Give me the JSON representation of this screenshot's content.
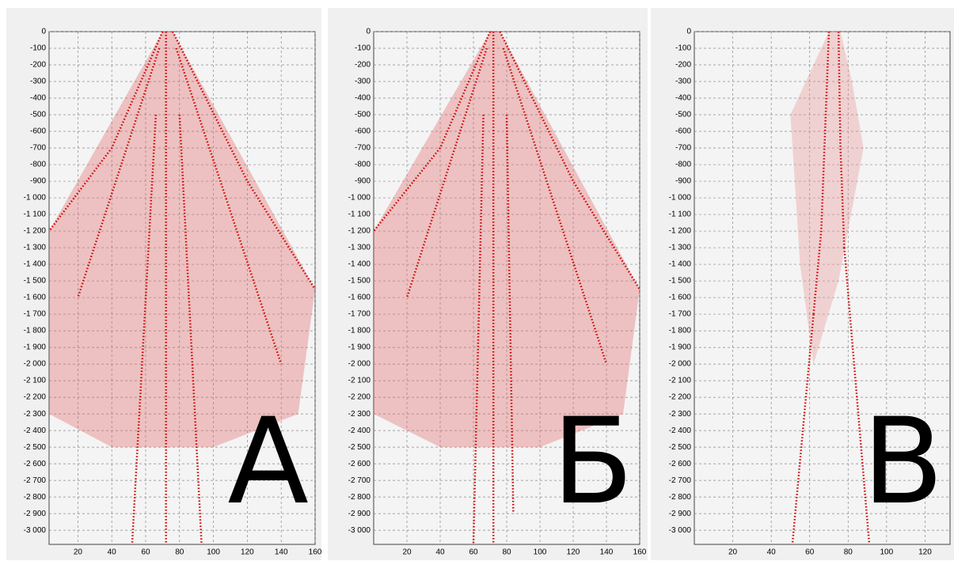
{
  "chart_data": [
    {
      "type": "line",
      "annotation": "А",
      "xlim": [
        3,
        160
      ],
      "ylim": [
        -3085,
        0
      ],
      "xticks": [
        20,
        40,
        60,
        80,
        100,
        120,
        140,
        160
      ],
      "yticks": [
        0,
        -100,
        -200,
        -300,
        -400,
        -500,
        -600,
        -700,
        -800,
        -900,
        {
          "value": -1000,
          "label": "-1 000"
        },
        {
          "value": -1100,
          "label": "-1 100"
        },
        {
          "value": -1200,
          "label": "-1 200"
        },
        {
          "value": -1300,
          "label": "-1 300"
        },
        {
          "value": -1400,
          "label": "-1 400"
        },
        {
          "value": -1500,
          "label": "-1 500"
        },
        {
          "value": -1600,
          "label": "-1 600"
        },
        {
          "value": -1700,
          "label": "-1 700"
        },
        {
          "value": -1800,
          "label": "-1 800"
        },
        {
          "value": -1900,
          "label": "-1 900"
        },
        {
          "value": -2000,
          "label": "-2 000"
        },
        {
          "value": -2100,
          "label": "-2 100"
        },
        {
          "value": -2200,
          "label": "-2 200"
        },
        {
          "value": -2300,
          "label": "-2 300"
        },
        {
          "value": -2400,
          "label": "-2 400"
        },
        {
          "value": -2500,
          "label": "-2 500"
        },
        {
          "value": -2600,
          "label": "-2 600"
        },
        {
          "value": -2700,
          "label": "-2 700"
        },
        {
          "value": -2800,
          "label": "-2 800"
        },
        {
          "value": -2900,
          "label": "-2 900"
        },
        {
          "value": -3000,
          "label": "-3 000"
        }
      ],
      "grid": true,
      "series": [
        {
          "color": "#e06060",
          "fill": true,
          "x": [
            70,
            3,
            3,
            40,
            100,
            150,
            160,
            76
          ],
          "values": [
            0,
            -1200,
            -2300,
            -2500,
            -2500,
            -2300,
            -1550,
            0
          ]
        },
        {
          "color": "#d00000",
          "x": [
            70,
            40,
            3
          ],
          "values": [
            0,
            -700,
            -1200
          ]
        },
        {
          "color": "#d00000",
          "x": [
            76,
            120,
            160
          ],
          "values": [
            0,
            -900,
            -1550
          ]
        },
        {
          "color": "#d00000",
          "x": [
            68,
            20
          ],
          "values": [
            -100,
            -1600
          ]
        },
        {
          "color": "#d00000",
          "x": [
            78,
            140
          ],
          "values": [
            -100,
            -2000
          ]
        },
        {
          "color": "#d00000",
          "x": [
            66,
            52
          ],
          "values": [
            -500,
            -3085
          ]
        },
        {
          "color": "#d00000",
          "x": [
            80,
            93
          ],
          "values": [
            -500,
            -3085
          ]
        },
        {
          "color": "#d00000",
          "x": [
            72,
            72
          ],
          "values": [
            0,
            -3085
          ]
        }
      ]
    },
    {
      "type": "line",
      "annotation": "Б",
      "xlim": [
        0,
        160
      ],
      "ylim": [
        -3085,
        0
      ],
      "xticks": [
        20,
        40,
        60,
        80,
        100,
        120,
        140,
        160
      ],
      "yticks": [
        0,
        -100,
        -200,
        -300,
        -400,
        -500,
        -600,
        -700,
        -800,
        -900,
        {
          "value": -1000,
          "label": "-1 000"
        },
        {
          "value": -1100,
          "label": "-1 100"
        },
        {
          "value": -1200,
          "label": "-1 200"
        },
        {
          "value": -1300,
          "label": "-1 300"
        },
        {
          "value": -1400,
          "label": "-1 400"
        },
        {
          "value": -1500,
          "label": "-1 500"
        },
        {
          "value": -1600,
          "label": "-1 600"
        },
        {
          "value": -1700,
          "label": "-1 700"
        },
        {
          "value": -1800,
          "label": "-1 800"
        },
        {
          "value": -1900,
          "label": "-1 900"
        },
        {
          "value": -2000,
          "label": "-2 000"
        },
        {
          "value": -2100,
          "label": "-2 100"
        },
        {
          "value": -2200,
          "label": "-2 200"
        },
        {
          "value": -2300,
          "label": "-2 300"
        },
        {
          "value": -2400,
          "label": "-2 400"
        },
        {
          "value": -2500,
          "label": "-2 500"
        },
        {
          "value": -2600,
          "label": "-2 600"
        },
        {
          "value": -2700,
          "label": "-2 700"
        },
        {
          "value": -2800,
          "label": "-2 800"
        },
        {
          "value": -2900,
          "label": "-2 900"
        },
        {
          "value": -3000,
          "label": "-3 000"
        }
      ],
      "grid": true,
      "series": [
        {
          "color": "#e06060",
          "fill": true,
          "x": [
            70,
            0,
            0,
            40,
            100,
            150,
            160,
            76
          ],
          "values": [
            0,
            -1200,
            -2300,
            -2500,
            -2500,
            -2300,
            -1550,
            0
          ]
        },
        {
          "color": "#d00000",
          "x": [
            70,
            40,
            0
          ],
          "values": [
            0,
            -700,
            -1200
          ]
        },
        {
          "color": "#d00000",
          "x": [
            76,
            120,
            160
          ],
          "values": [
            0,
            -900,
            -1550
          ]
        },
        {
          "color": "#d00000",
          "x": [
            68,
            20
          ],
          "values": [
            -100,
            -1600
          ]
        },
        {
          "color": "#d00000",
          "x": [
            78,
            140
          ],
          "values": [
            -100,
            -2000
          ]
        },
        {
          "color": "#d00000",
          "x": [
            66,
            60
          ],
          "values": [
            -500,
            -3085
          ]
        },
        {
          "color": "#d00000",
          "x": [
            80,
            84
          ],
          "values": [
            -500,
            -2900
          ]
        },
        {
          "color": "#d00000",
          "x": [
            72,
            72
          ],
          "values": [
            0,
            -3085
          ]
        }
      ]
    },
    {
      "type": "line",
      "annotation": "В",
      "xlim": [
        0,
        133
      ],
      "ylim": [
        -3085,
        0
      ],
      "xticks": [
        20,
        40,
        60,
        80,
        100,
        120
      ],
      "yticks": [
        0,
        -100,
        -200,
        -300,
        -400,
        -500,
        -600,
        -700,
        -800,
        -900,
        {
          "value": -1000,
          "label": "-1 000"
        },
        {
          "value": -1100,
          "label": "-1 100"
        },
        {
          "value": -1200,
          "label": "-1 200"
        },
        {
          "value": -1300,
          "label": "-1 300"
        },
        {
          "value": -1400,
          "label": "-1 400"
        },
        {
          "value": -1500,
          "label": "-1 500"
        },
        {
          "value": -1600,
          "label": "-1 600"
        },
        {
          "value": -1700,
          "label": "-1 700"
        },
        {
          "value": -1800,
          "label": "-1 800"
        },
        {
          "value": -1900,
          "label": "-1 900"
        },
        {
          "value": -2000,
          "label": "-2 000"
        },
        {
          "value": -2100,
          "label": "-2 100"
        },
        {
          "value": -2200,
          "label": "-2 200"
        },
        {
          "value": -2300,
          "label": "-2 300"
        },
        {
          "value": -2400,
          "label": "-2 400"
        },
        {
          "value": -2500,
          "label": "-2 500"
        },
        {
          "value": -2600,
          "label": "-2 600"
        },
        {
          "value": -2700,
          "label": "-2 700"
        },
        {
          "value": -2800,
          "label": "-2 800"
        },
        {
          "value": -2900,
          "label": "-2 900"
        },
        {
          "value": -3000,
          "label": "-3 000"
        }
      ],
      "grid": true,
      "series": [
        {
          "color": "#e89090",
          "fill": true,
          "x": [
            70,
            50,
            55,
            62,
            75,
            88,
            82,
            76
          ],
          "values": [
            0,
            -500,
            -1400,
            -2000,
            -1500,
            -700,
            -300,
            0
          ]
        },
        {
          "color": "#d00000",
          "x": [
            70,
            68,
            66,
            62
          ],
          "values": [
            0,
            -600,
            -1200,
            -1700
          ]
        },
        {
          "color": "#d00000",
          "x": [
            75,
            76,
            78
          ],
          "values": [
            0,
            -700,
            -1300
          ]
        },
        {
          "color": "#d00000",
          "x": [
            62,
            51
          ],
          "values": [
            -1700,
            -3085
          ]
        },
        {
          "color": "#d00000",
          "x": [
            78,
            91
          ],
          "values": [
            -1300,
            -3085
          ]
        }
      ]
    }
  ]
}
